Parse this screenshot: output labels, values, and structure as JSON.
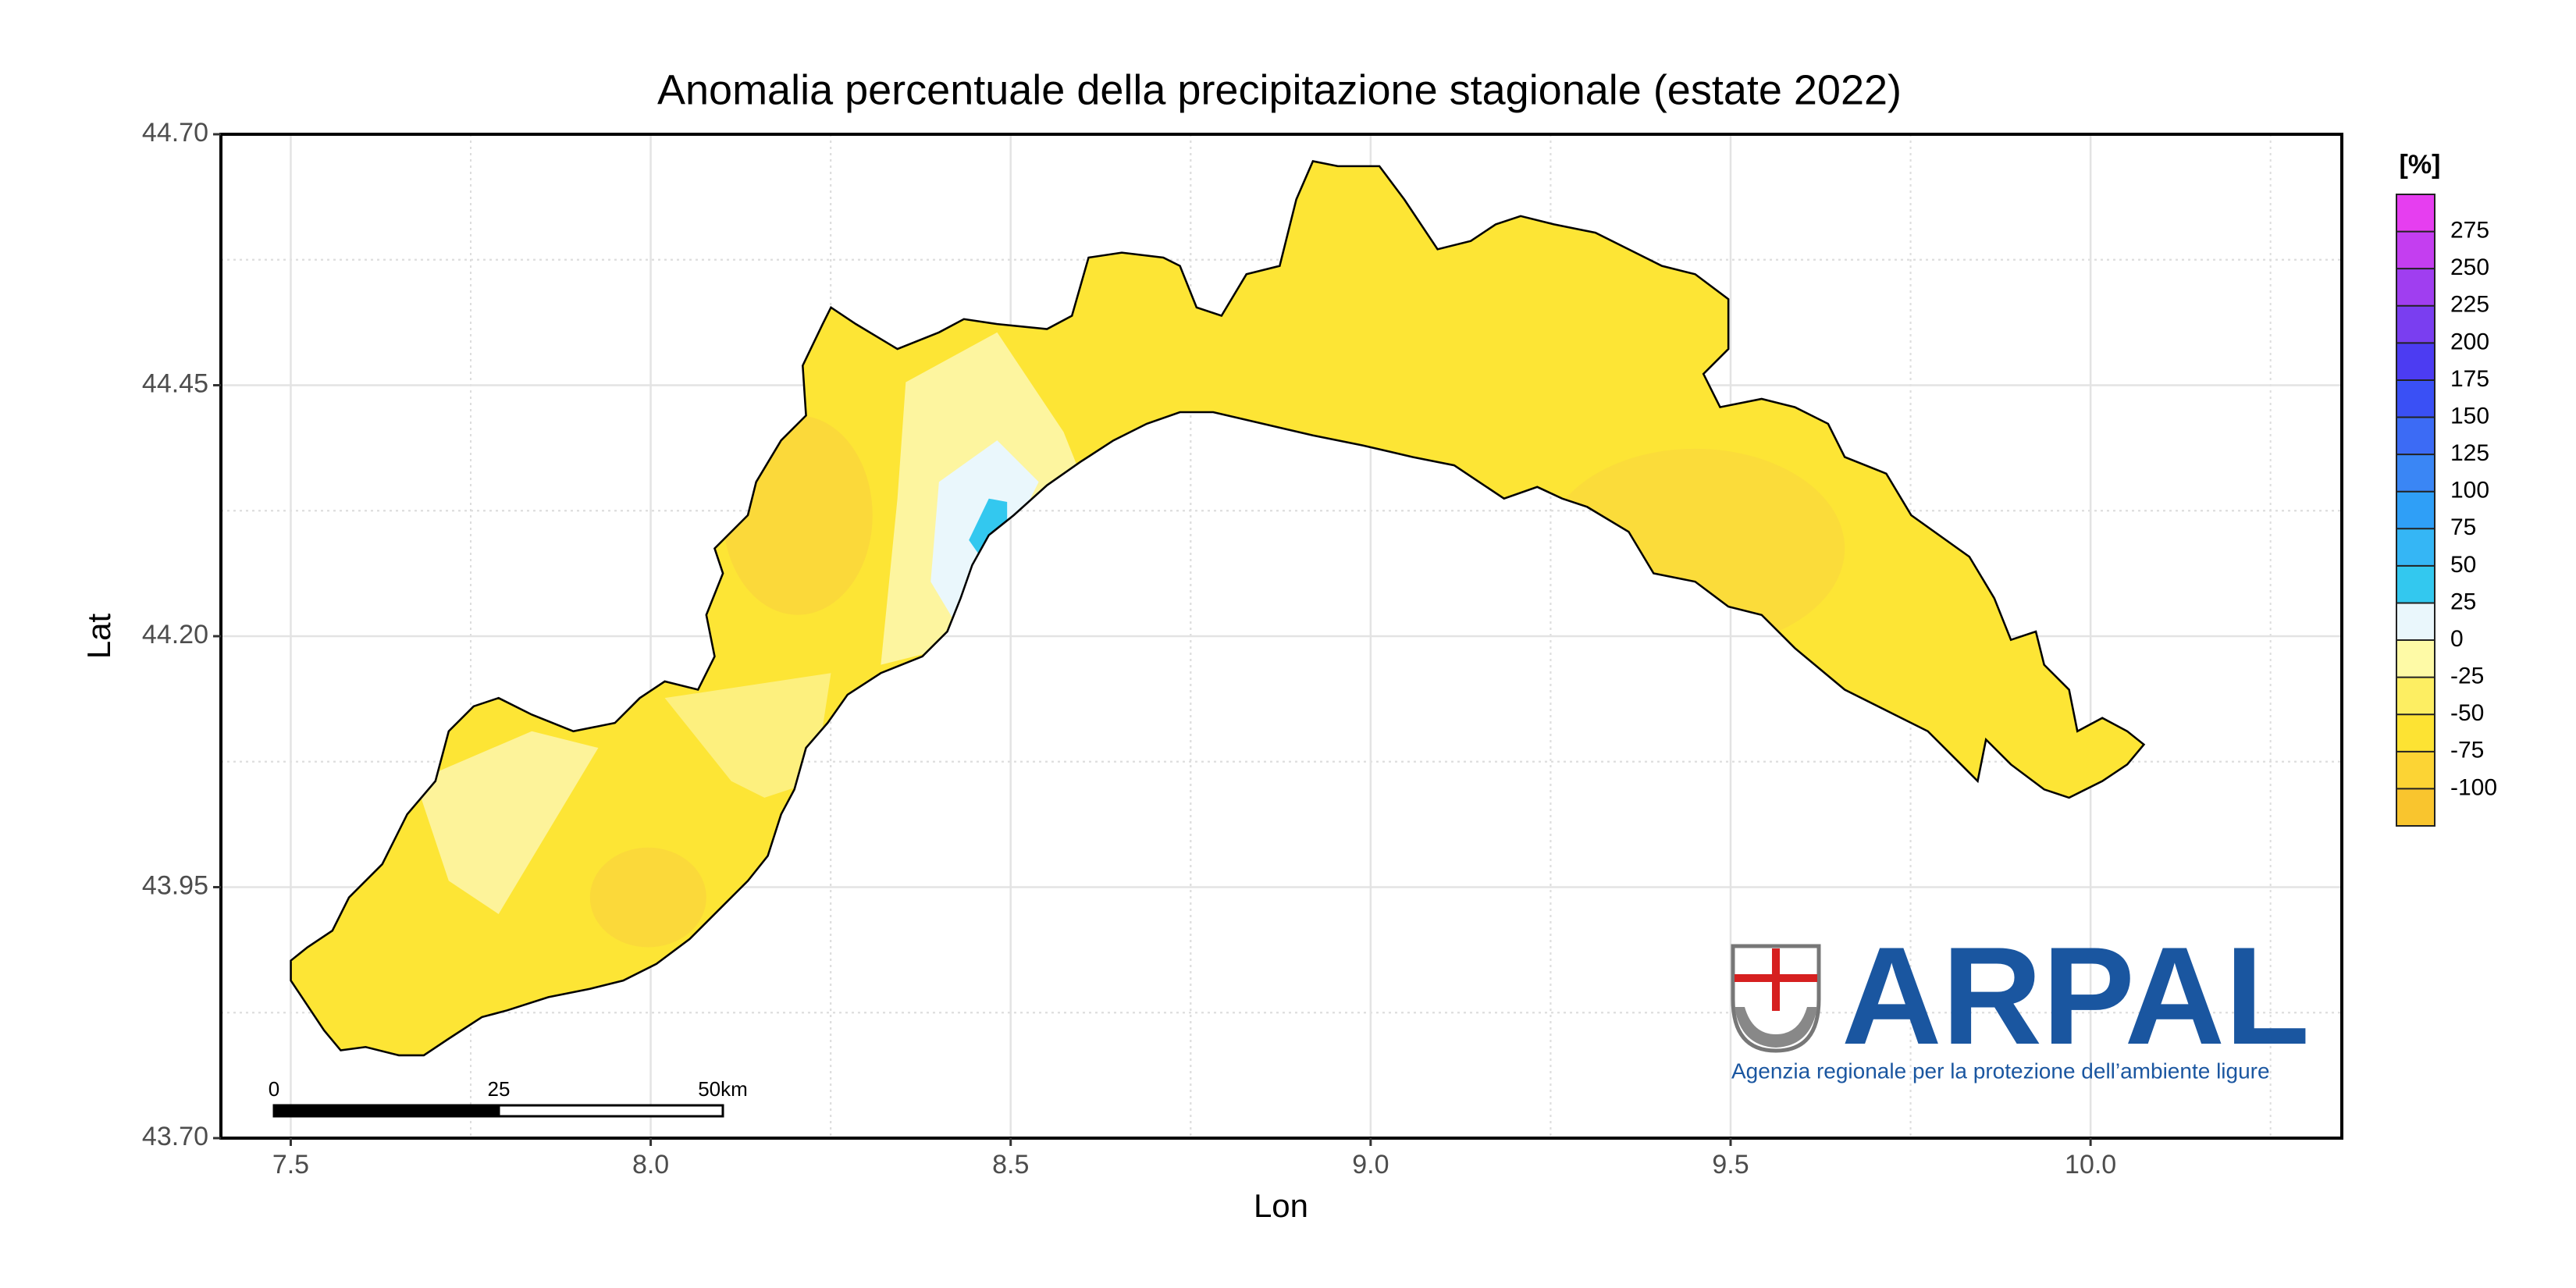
{
  "map": {
    "title": "Anomalia percentuale della precipitazione stagionale (estate 2022)",
    "xlabel": "Lon",
    "ylabel": "Lat",
    "xlim": [
      7.403,
      10.349
    ],
    "ylim": [
      43.7,
      44.7
    ],
    "xticks": [
      7.5,
      {
        "value": 8,
        "label": "8.0"
      },
      8.5,
      {
        "value": 9,
        "label": "9.0"
      },
      9.5,
      {
        "value": 10,
        "label": "10.0"
      }
    ],
    "yticks": [
      {
        "value": 43.7,
        "label": "43.70"
      },
      43.95,
      {
        "value": 44.2,
        "label": "44.20"
      },
      44.45,
      {
        "value": 44.7,
        "label": "44.70"
      }
    ],
    "legend": {
      "title": "[%]",
      "breaks": [
        -100,
        -75,
        -50,
        -25,
        0,
        25,
        50,
        75,
        100,
        125,
        150,
        175,
        200,
        225,
        250,
        275
      ],
      "colors": [
        "#f9c52e",
        "#fcd434",
        "#fde333",
        "#fdee62",
        "#fefaa6",
        "#eaf7fc",
        "#33c8ef",
        "#35b6f5",
        "#2f9ff7",
        "#3a86f5",
        "#3c6bf5",
        "#3a50f5",
        "#4c3cf2",
        "#7a3ef0",
        "#a03ef0",
        "#c43ef0",
        "#e63ef0"
      ]
    },
    "scalebar": {
      "labels": [
        "0",
        "25",
        "50km"
      ]
    },
    "logo": {
      "name": "ARPAL",
      "subtitle": "Agenzia regionale per la protezione dell’ambiente ligure"
    }
  }
}
